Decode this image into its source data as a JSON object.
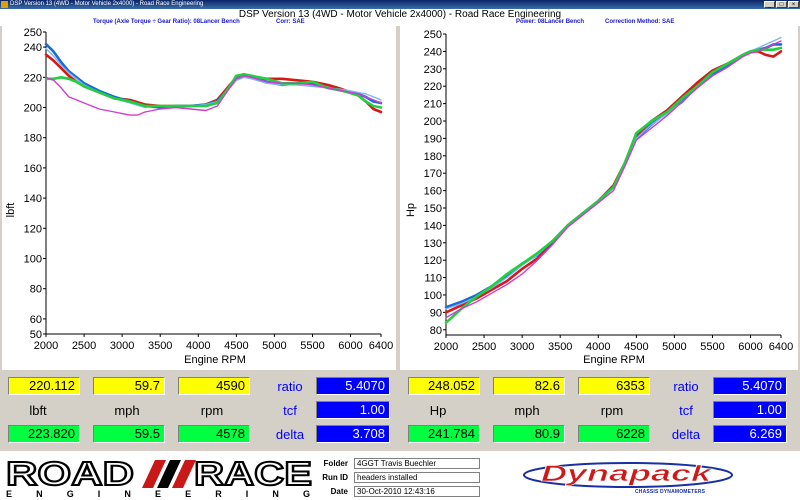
{
  "window": {
    "title": "DSP Version 13 (4WD - Motor Vehicle 2x4000) - Road Race Engineering",
    "buttons": [
      "_",
      "□",
      "×"
    ]
  },
  "header": {
    "title": "DSP Version 13 (4WD - Motor Vehicle 2x4000) - Road Race Engineering",
    "left_sub1": "Torque (Axle Torque ÷ Gear Ratio): 08Lancer Bench",
    "left_sub2": "Corr: SAE",
    "right_sub1": "Power: 08Lancer Bench",
    "right_sub2": "Correction Method: SAE"
  },
  "colors": {
    "red": "#d81818",
    "blue": "#1a6ad8",
    "lightblue": "#82b4f0",
    "green": "#20d040",
    "magenta": "#d03cd0"
  },
  "chart_data": [
    {
      "type": "line",
      "xlabel": "Engine RPM",
      "ylabel": "lbft",
      "xlim": [
        2000,
        6400
      ],
      "ylim": [
        50,
        250
      ],
      "x_ticks": [
        2000,
        2500,
        3000,
        3500,
        4000,
        4500,
        5000,
        5500,
        6000,
        6400
      ],
      "y_ticks": [
        50,
        60,
        80,
        100,
        120,
        140,
        160,
        180,
        200,
        220,
        240,
        250
      ],
      "grid": false,
      "series": [
        {
          "color": "red",
          "x": [
            2000,
            2100,
            2200,
            2300,
            2400,
            2500,
            2700,
            2900,
            3100,
            3300,
            3500,
            3700,
            3900,
            4100,
            4250,
            4400,
            4500,
            4600,
            4700,
            4900,
            5100,
            5300,
            5500,
            5700,
            5900,
            6100,
            6200,
            6300,
            6400
          ],
          "y": [
            235,
            231,
            226,
            221,
            217,
            214,
            210,
            206,
            205,
            202,
            201,
            201,
            201,
            202,
            205,
            214,
            220,
            222,
            220,
            219,
            219,
            218,
            217,
            215,
            212,
            208,
            204,
            199,
            197
          ]
        },
        {
          "color": "blue",
          "x": [
            2000,
            2100,
            2200,
            2300,
            2400,
            2500,
            2700,
            2900,
            3100,
            3300,
            3500,
            3700,
            3900,
            4100,
            4250,
            4400,
            4500,
            4600,
            4700,
            4900,
            5100,
            5300,
            5500,
            5700,
            5900,
            6100,
            6200,
            6300,
            6400
          ],
          "y": [
            242,
            237,
            230,
            224,
            220,
            216,
            211,
            207,
            204,
            201,
            200,
            201,
            201,
            202,
            204,
            213,
            219,
            221,
            220,
            217,
            215,
            216,
            216,
            213,
            211,
            209,
            207,
            204,
            203
          ]
        },
        {
          "color": "lightblue",
          "x": [
            2000,
            2100,
            2200,
            2300,
            2400,
            2500,
            2700,
            2900,
            3100,
            3300,
            3500,
            3700,
            3900,
            4100,
            4250,
            4400,
            4500,
            4600,
            4700,
            4900,
            5100,
            5300,
            5500,
            5700,
            5900,
            6100,
            6200,
            6300,
            6400
          ],
          "y": [
            239,
            234,
            228,
            223,
            219,
            215,
            210,
            206,
            203,
            200,
            201,
            200,
            201,
            202,
            204,
            212,
            218,
            220,
            219,
            216,
            215,
            215,
            214,
            213,
            212,
            210,
            209,
            207,
            205
          ]
        },
        {
          "color": "green",
          "x": [
            2000,
            2100,
            2200,
            2300,
            2400,
            2500,
            2700,
            2900,
            3100,
            3300,
            3500,
            3700,
            3900,
            4100,
            4250,
            4400,
            4500,
            4600,
            4700,
            4900,
            5100,
            5300,
            5500,
            5700,
            5900,
            6100,
            6200,
            6300,
            6400
          ],
          "y": [
            219,
            219,
            220,
            219,
            217,
            214,
            210,
            206,
            204,
            201,
            201,
            201,
            201,
            201,
            203,
            213,
            221,
            222,
            221,
            219,
            216,
            216,
            217,
            213,
            211,
            208,
            204,
            201,
            200
          ]
        },
        {
          "color": "magenta",
          "x": [
            2000,
            2100,
            2200,
            2300,
            2400,
            2500,
            2700,
            2900,
            3100,
            3200,
            3300,
            3500,
            3700,
            3900,
            4100,
            4250,
            4400,
            4500,
            4600,
            4700,
            4900,
            5100,
            5300,
            5500,
            5700,
            5900,
            6100,
            6200,
            6300,
            6400
          ],
          "y": [
            220,
            218,
            213,
            207,
            205,
            203,
            199,
            197,
            195,
            195,
            197,
            199,
            200,
            199,
            198,
            201,
            212,
            219,
            221,
            220,
            217,
            216,
            216,
            215,
            213,
            211,
            209,
            207,
            205,
            203
          ]
        }
      ]
    },
    {
      "type": "line",
      "xlabel": "Engine RPM",
      "ylabel": "Hp",
      "xlim": [
        2000,
        6400
      ],
      "ylim": [
        77,
        250
      ],
      "x_ticks": [
        2000,
        2500,
        3000,
        3500,
        4000,
        4500,
        5000,
        5500,
        6000,
        6400
      ],
      "y_ticks": [
        80,
        90,
        100,
        110,
        120,
        130,
        140,
        150,
        160,
        170,
        180,
        190,
        200,
        210,
        220,
        230,
        240,
        250
      ],
      "grid": false,
      "series": [
        {
          "color": "red",
          "x": [
            2000,
            2200,
            2400,
            2600,
            2800,
            3000,
            3200,
            3400,
            3600,
            3800,
            4000,
            4200,
            4350,
            4500,
            4700,
            4900,
            5100,
            5300,
            5500,
            5700,
            5900,
            6000,
            6100,
            6200,
            6300,
            6400
          ],
          "y": [
            90,
            94,
            98,
            103,
            108,
            115,
            121,
            130,
            140,
            147,
            154,
            163,
            176,
            192,
            200,
            206,
            214,
            222,
            229,
            233,
            238,
            240,
            240,
            238,
            237,
            240
          ]
        },
        {
          "color": "blue",
          "x": [
            2000,
            2200,
            2400,
            2600,
            2800,
            3000,
            3200,
            3400,
            3600,
            3800,
            4000,
            4200,
            4350,
            4500,
            4700,
            4900,
            5100,
            5300,
            5500,
            5700,
            5900,
            6000,
            6100,
            6200,
            6300,
            6400
          ],
          "y": [
            93,
            96,
            100,
            105,
            111,
            118,
            123,
            131,
            140,
            147,
            154,
            162,
            175,
            190,
            198,
            205,
            211,
            220,
            227,
            232,
            238,
            240,
            241,
            242,
            244,
            244
          ]
        },
        {
          "color": "lightblue",
          "x": [
            2000,
            2200,
            2400,
            2600,
            2800,
            3000,
            3200,
            3400,
            3600,
            3800,
            4000,
            4200,
            4350,
            4500,
            4700,
            4900,
            5100,
            5300,
            5500,
            5700,
            5900,
            6000,
            6100,
            6200,
            6300,
            6400
          ],
          "y": [
            92,
            95,
            99,
            104,
            110,
            117,
            123,
            131,
            140,
            147,
            154,
            162,
            175,
            190,
            198,
            204,
            211,
            219,
            226,
            231,
            237,
            240,
            242,
            244,
            246,
            248
          ]
        },
        {
          "color": "green",
          "x": [
            2000,
            2200,
            2400,
            2600,
            2800,
            3000,
            3200,
            3400,
            3600,
            3800,
            4000,
            4200,
            4350,
            4500,
            4700,
            4900,
            5100,
            5300,
            5500,
            5700,
            5900,
            6000,
            6100,
            6200,
            6300,
            6400
          ],
          "y": [
            84,
            92,
            99,
            105,
            112,
            118,
            124,
            131,
            140,
            147,
            154,
            162,
            176,
            193,
            200,
            205,
            213,
            220,
            228,
            233,
            238,
            240,
            241,
            241,
            241,
            242
          ]
        },
        {
          "color": "magenta",
          "x": [
            2000,
            2200,
            2400,
            2600,
            2800,
            3000,
            3200,
            3400,
            3600,
            3800,
            4000,
            4200,
            4350,
            4500,
            4700,
            4900,
            5100,
            5300,
            5500,
            5700,
            5900,
            6000,
            6100,
            6200,
            6300,
            6400
          ],
          "y": [
            87,
            92,
            96,
            101,
            106,
            112,
            120,
            129,
            139,
            146,
            153,
            160,
            174,
            189,
            196,
            203,
            211,
            219,
            226,
            231,
            237,
            239,
            240,
            242,
            244,
            246
          ]
        }
      ]
    }
  ],
  "readouts": {
    "left": {
      "row1": [
        "220.112",
        "59.7",
        "4590"
      ],
      "labels": [
        "lbft",
        "mph",
        "rpm"
      ],
      "row3": [
        "223.820",
        "59.5",
        "4578"
      ],
      "ratio_label": "ratio",
      "ratio": "5.4070",
      "tcf_label": "tcf",
      "tcf": "1.00",
      "delta_label": "delta",
      "delta": "3.708"
    },
    "right": {
      "row1": [
        "248.052",
        "82.6",
        "6353"
      ],
      "labels": [
        "Hp",
        "mph",
        "rpm"
      ],
      "row3": [
        "241.784",
        "80.9",
        "6228"
      ],
      "ratio_label": "ratio",
      "ratio": "5.4070",
      "tcf_label": "tcf",
      "tcf": "1.00",
      "delta_label": "delta",
      "delta": "6.269"
    }
  },
  "footer": {
    "logo_word1": "ROAD",
    "logo_word2": "RACE",
    "logo_sub": "E N G I N E E R I N G",
    "folder_label": "Folder",
    "folder_value": "4GGT Travis Buechler",
    "runid_label": "Run ID",
    "runid_value": "headers installed",
    "date_label": "Date",
    "date_value": "30-Oct-2010 12:43:16",
    "brand": "Dynapack",
    "brand_sub": "CHASSIS DYNAMOMETERS"
  }
}
